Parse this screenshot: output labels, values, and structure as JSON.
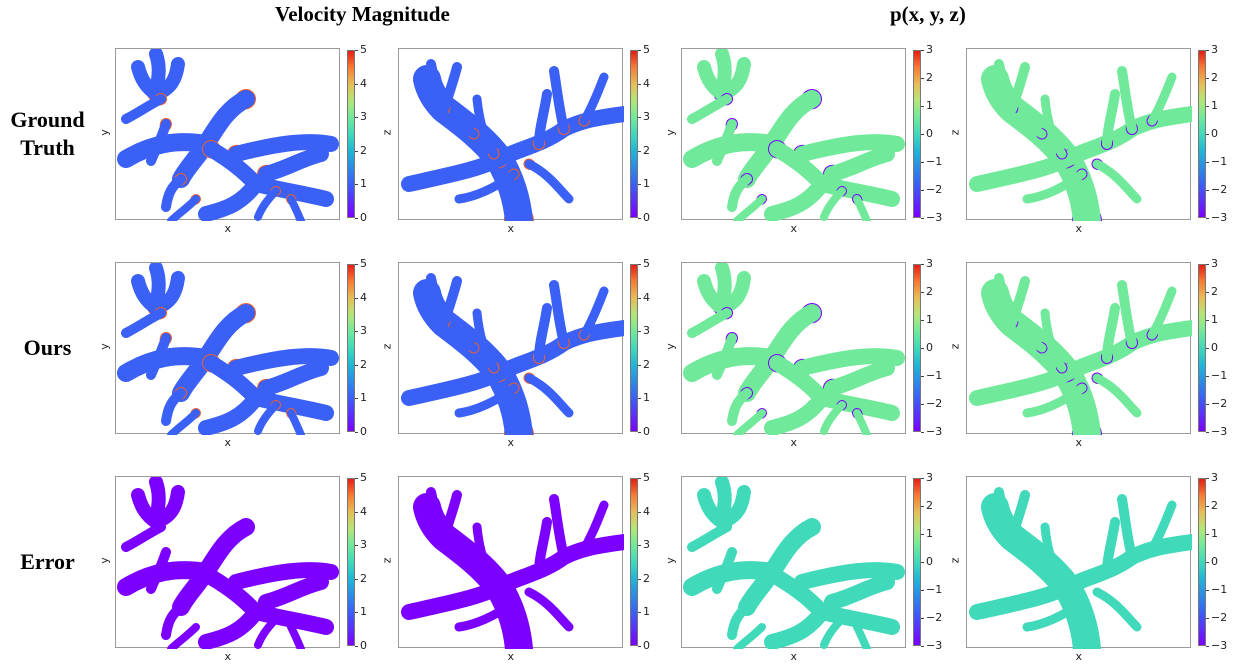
{
  "figure": {
    "column_titles": [
      "Velocity Magnitude",
      "p(x, y, z)"
    ],
    "row_labels": [
      "Ground\nTruth",
      "Ours",
      "Error"
    ]
  },
  "chart_data": [
    {
      "type": "heatmap",
      "row": "Ground Truth",
      "quantity": "Velocity Magnitude",
      "xlabel": "x",
      "ylabel": "y",
      "colorbar": {
        "min": 0,
        "max": 5,
        "ticks": [
          5,
          4,
          3,
          2,
          1,
          0
        ],
        "colormap": "rainbow"
      },
      "dominant_value": 1.0
    },
    {
      "type": "heatmap",
      "row": "Ground Truth",
      "quantity": "Velocity Magnitude",
      "xlabel": "x",
      "ylabel": "z",
      "colorbar": {
        "min": 0,
        "max": 5,
        "ticks": [
          5,
          4,
          3,
          2,
          1,
          0
        ],
        "colormap": "rainbow"
      },
      "dominant_value": 1.0
    },
    {
      "type": "heatmap",
      "row": "Ground Truth",
      "quantity": "p(x, y, z)",
      "xlabel": "x",
      "ylabel": "y",
      "colorbar": {
        "min": -3,
        "max": 3,
        "ticks": [
          3,
          2,
          1,
          0,
          -1,
          -2,
          -3
        ],
        "colormap": "rainbow"
      },
      "dominant_value": 0.6
    },
    {
      "type": "heatmap",
      "row": "Ground Truth",
      "quantity": "p(x, y, z)",
      "xlabel": "x",
      "ylabel": "z",
      "colorbar": {
        "min": -3,
        "max": 3,
        "ticks": [
          3,
          2,
          1,
          0,
          -1,
          -2,
          -3
        ],
        "colormap": "rainbow"
      },
      "dominant_value": 0.6
    },
    {
      "type": "heatmap",
      "row": "Ours",
      "quantity": "Velocity Magnitude",
      "xlabel": "x",
      "ylabel": "y",
      "colorbar": {
        "min": 0,
        "max": 5,
        "ticks": [
          5,
          4,
          3,
          2,
          1,
          0
        ],
        "colormap": "rainbow"
      },
      "dominant_value": 1.0
    },
    {
      "type": "heatmap",
      "row": "Ours",
      "quantity": "Velocity Magnitude",
      "xlabel": "x",
      "ylabel": "z",
      "colorbar": {
        "min": 0,
        "max": 5,
        "ticks": [
          5,
          4,
          3,
          2,
          1,
          0
        ],
        "colormap": "rainbow"
      },
      "dominant_value": 1.0
    },
    {
      "type": "heatmap",
      "row": "Ours",
      "quantity": "p(x, y, z)",
      "xlabel": "x",
      "ylabel": "y",
      "colorbar": {
        "min": -3,
        "max": 3,
        "ticks": [
          3,
          2,
          1,
          0,
          -1,
          -2,
          -3
        ],
        "colormap": "rainbow"
      },
      "dominant_value": 0.6
    },
    {
      "type": "heatmap",
      "row": "Ours",
      "quantity": "p(x, y, z)",
      "xlabel": "x",
      "ylabel": "z",
      "colorbar": {
        "min": -3,
        "max": 3,
        "ticks": [
          3,
          2,
          1,
          0,
          -1,
          -2,
          -3
        ],
        "colormap": "rainbow"
      },
      "dominant_value": 0.6
    },
    {
      "type": "heatmap",
      "row": "Error",
      "quantity": "Velocity Magnitude",
      "xlabel": "x",
      "ylabel": "y",
      "colorbar": {
        "min": 0,
        "max": 5,
        "ticks": [
          5,
          4,
          3,
          2,
          1,
          0
        ],
        "colormap": "rainbow"
      },
      "dominant_value": 0.0
    },
    {
      "type": "heatmap",
      "row": "Error",
      "quantity": "Velocity Magnitude",
      "xlabel": "x",
      "ylabel": "z",
      "colorbar": {
        "min": 0,
        "max": 5,
        "ticks": [
          5,
          4,
          3,
          2,
          1,
          0
        ],
        "colormap": "rainbow"
      },
      "dominant_value": 0.0
    },
    {
      "type": "heatmap",
      "row": "Error",
      "quantity": "p(x, y, z)",
      "xlabel": "x",
      "ylabel": "y",
      "colorbar": {
        "min": -3,
        "max": 3,
        "ticks": [
          3,
          2,
          1,
          0,
          -1,
          -2,
          -3
        ],
        "colormap": "rainbow"
      },
      "dominant_value": 0.0
    },
    {
      "type": "heatmap",
      "row": "Error",
      "quantity": "p(x, y, z)",
      "xlabel": "x",
      "ylabel": "z",
      "colorbar": {
        "min": -3,
        "max": 3,
        "ticks": [
          3,
          2,
          1,
          0,
          -1,
          -2,
          -3
        ],
        "colormap": "rainbow"
      },
      "dominant_value": 0.0
    }
  ]
}
